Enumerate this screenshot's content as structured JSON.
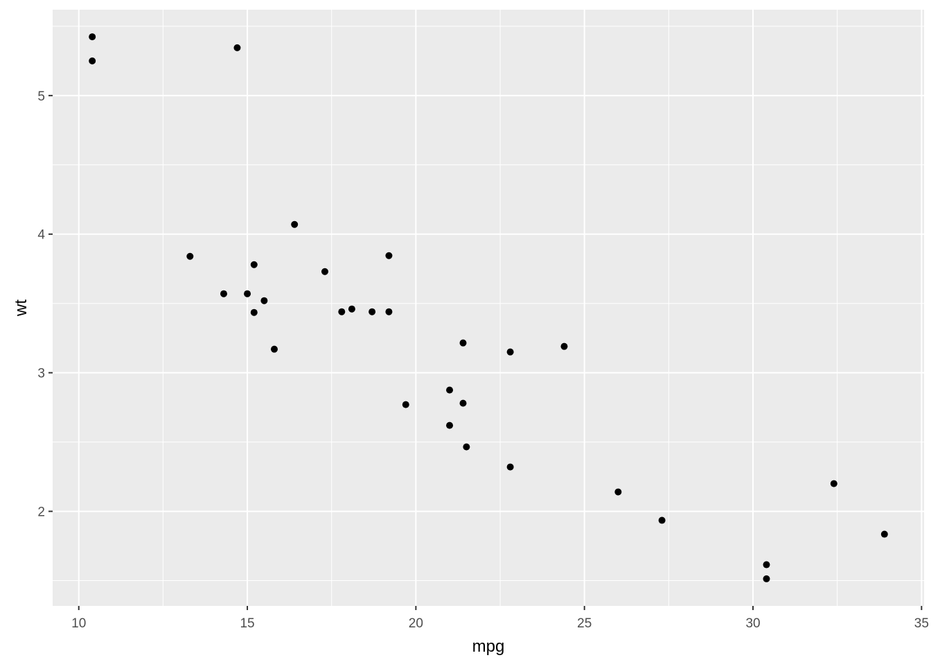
{
  "chart_data": {
    "type": "scatter",
    "title": "",
    "xlabel": "mpg",
    "ylabel": "wt",
    "xlim": [
      9.225,
      35.075
    ],
    "ylim": [
      1.3175,
      5.6195
    ],
    "xticks": [
      10,
      15,
      20,
      25,
      30,
      35
    ],
    "yticks": [
      2,
      3,
      4,
      5
    ],
    "grid": true,
    "background": "#EBEBEB",
    "point_color": "#000000",
    "points": [
      [
        21.0,
        2.62
      ],
      [
        21.0,
        2.875
      ],
      [
        22.8,
        2.32
      ],
      [
        21.4,
        3.215
      ],
      [
        18.7,
        3.44
      ],
      [
        18.1,
        3.46
      ],
      [
        14.3,
        3.57
      ],
      [
        24.4,
        3.19
      ],
      [
        22.8,
        3.15
      ],
      [
        19.2,
        3.44
      ],
      [
        17.8,
        3.44
      ],
      [
        16.4,
        4.07
      ],
      [
        17.3,
        3.73
      ],
      [
        15.2,
        3.78
      ],
      [
        10.4,
        5.25
      ],
      [
        10.4,
        5.424
      ],
      [
        14.7,
        5.345
      ],
      [
        32.4,
        2.2
      ],
      [
        30.4,
        1.615
      ],
      [
        33.9,
        1.835
      ],
      [
        21.5,
        2.465
      ],
      [
        15.5,
        3.52
      ],
      [
        15.2,
        3.435
      ],
      [
        13.3,
        3.84
      ],
      [
        19.2,
        3.845
      ],
      [
        27.3,
        1.935
      ],
      [
        26.0,
        2.14
      ],
      [
        30.4,
        1.513
      ],
      [
        15.8,
        3.17
      ],
      [
        19.7,
        2.77
      ],
      [
        15.0,
        3.57
      ],
      [
        21.4,
        2.78
      ]
    ]
  }
}
